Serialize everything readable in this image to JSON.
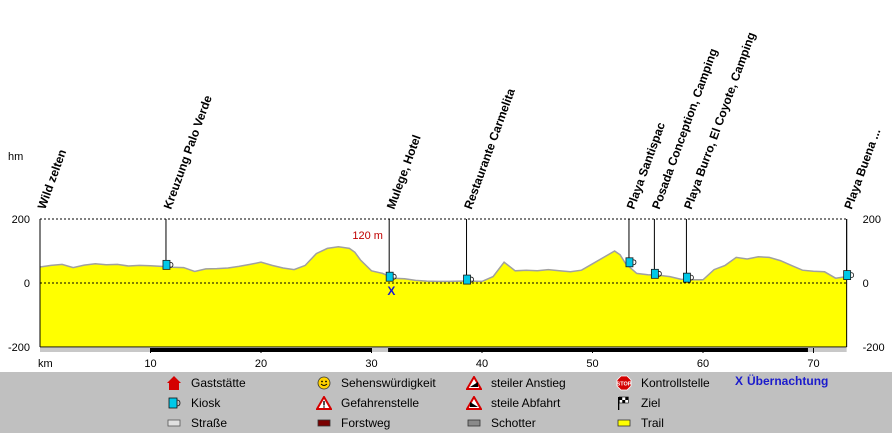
{
  "chart_data": {
    "type": "area",
    "ylabel": "hm",
    "xlabel": "km",
    "xlim": [
      0,
      73
    ],
    "ylim": [
      -200,
      200
    ],
    "y_ticks": [
      200,
      0,
      -200
    ],
    "x_ticks": [
      10,
      20,
      30,
      40,
      50,
      60,
      70
    ],
    "series": [
      {
        "name": "Trail",
        "x": [
          0,
          1,
          2,
          3,
          4,
          5,
          6,
          7,
          8,
          9,
          10,
          11,
          12,
          13,
          14,
          15,
          16,
          17,
          18,
          19,
          20,
          21,
          22,
          23,
          24,
          25,
          26,
          27,
          28,
          28.5,
          29,
          30,
          31,
          32,
          33,
          34,
          35,
          36,
          37,
          38,
          39,
          40,
          41,
          42,
          43,
          44,
          45,
          46,
          47,
          48,
          49,
          50,
          51,
          52,
          52.5,
          53,
          54,
          55,
          56,
          57,
          58,
          59,
          60,
          61,
          62,
          63,
          64,
          65,
          66,
          67,
          68,
          69,
          70,
          71,
          72,
          73
        ],
        "y": [
          50,
          55,
          58,
          48,
          56,
          60,
          57,
          58,
          53,
          55,
          54,
          52,
          49,
          48,
          36,
          44,
          45,
          47,
          52,
          58,
          65,
          55,
          47,
          42,
          55,
          92,
          108,
          113,
          108,
          96,
          72,
          38,
          30,
          15,
          13,
          8,
          6,
          5,
          5,
          6,
          6,
          5,
          20,
          65,
          38,
          40,
          38,
          42,
          38,
          35,
          40,
          60,
          80,
          100,
          88,
          60,
          30,
          26,
          24,
          20,
          12,
          10,
          10,
          42,
          55,
          80,
          75,
          82,
          80,
          70,
          55,
          40,
          37,
          35,
          15,
          20
        ]
      }
    ],
    "waypoints": [
      {
        "km": 0,
        "label": "Wild zelten",
        "icon": "none"
      },
      {
        "km": 11.4,
        "label": "Kreuzung Palo Verde",
        "icon": "kiosk"
      },
      {
        "km": 31.6,
        "label": "Mulege, Hotel",
        "icon": "kiosk"
      },
      {
        "km": 38.6,
        "label": "Restaurante Carmelita",
        "icon": "kiosk"
      },
      {
        "km": 53.3,
        "label": "Playa Santispac",
        "icon": "kiosk"
      },
      {
        "km": 55.6,
        "label": "Posada Conception, Camping",
        "icon": "kiosk"
      },
      {
        "km": 58.5,
        "label": "Playa Burro, El Coyote, Camping",
        "icon": "kiosk"
      },
      {
        "km": 73,
        "label": "Playa Buena ...",
        "icon": "kiosk"
      }
    ],
    "overnight_km": 31.8,
    "elevation_annotation": {
      "label": "120 m",
      "km": 31.4
    },
    "surface": [
      {
        "from": 0,
        "to": 10,
        "type": "Straße"
      },
      {
        "from": 10,
        "to": 30,
        "type": "Forstweg"
      },
      {
        "from": 30,
        "to": 31.5,
        "type": "Straße"
      },
      {
        "from": 31.5,
        "to": 69.5,
        "type": "Forstweg"
      },
      {
        "from": 69.5,
        "to": 73,
        "type": "Straße"
      }
    ]
  },
  "legend": {
    "items": [
      {
        "label": "Gaststätte",
        "icon": "restaurant-icon"
      },
      {
        "label": "Kiosk",
        "icon": "kiosk-icon"
      },
      {
        "label": "Straße",
        "icon": "road-swatch-icon"
      },
      {
        "label": "Sehenswürdigkeit",
        "icon": "smiley-icon"
      },
      {
        "label": "Gefahrenstelle",
        "icon": "danger-icon"
      },
      {
        "label": "Forstweg",
        "icon": "forest-road-swatch-icon"
      },
      {
        "label": "steiler Anstieg",
        "icon": "steep-climb-icon"
      },
      {
        "label": "steile Abfahrt",
        "icon": "steep-descent-icon"
      },
      {
        "label": "Schotter",
        "icon": "gravel-swatch-icon"
      },
      {
        "label": "Kontrollstelle",
        "icon": "stop-icon"
      },
      {
        "label": "Ziel",
        "icon": "finish-flag-icon"
      },
      {
        "label": "Trail",
        "icon": "trail-swatch-icon"
      }
    ],
    "overnight_label": "Übernachtung",
    "overnight_symbol": "X"
  },
  "colors": {
    "trail": "#ffff00",
    "trail_outline": "#a0a0a0",
    "forstweg": "#000000",
    "strasse": "#c8c8c8",
    "overnight": "#1a1acc",
    "annotation": "#c00000",
    "legend_bg": "#c0c0c0"
  }
}
